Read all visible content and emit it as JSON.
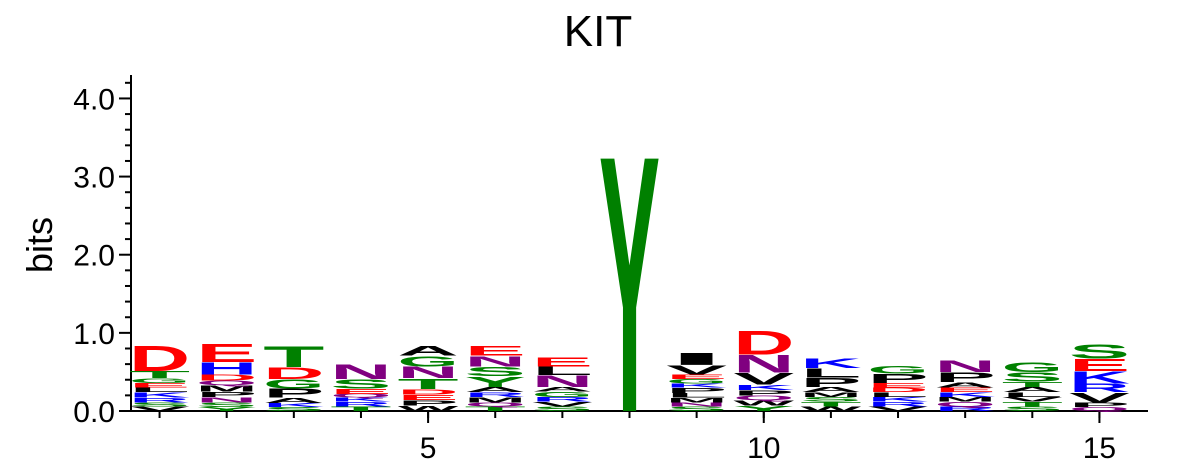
{
  "chart_data": {
    "type": "sequence-logo",
    "title": "KIT",
    "ylabel": "bits",
    "xlabel": "",
    "ylim": [
      0,
      4.3
    ],
    "y_ticks": [
      "0.0",
      "1.0",
      "2.0",
      "3.0",
      "4.0"
    ],
    "x_ticks": [
      "5",
      "10",
      "15"
    ],
    "x_tick_positions": [
      5,
      10,
      15
    ],
    "positions": [
      1,
      2,
      3,
      4,
      5,
      6,
      7,
      8,
      9,
      10,
      11,
      12,
      13,
      14,
      15
    ],
    "colors": {
      "acidic": "#ff0000",
      "basic": "#0000ff",
      "hydrophobic": "#000000",
      "polar": "#008000",
      "amide": "#800080"
    },
    "columns": [
      {
        "position": 1,
        "letters": [
          {
            "aa": "V",
            "bits": 0.06
          },
          {
            "aa": "S",
            "bits": 0.05
          },
          {
            "aa": "R",
            "bits": 0.06
          },
          {
            "aa": "K",
            "bits": 0.07
          },
          {
            "aa": "L",
            "bits": 0.06
          },
          {
            "aa": "E",
            "bits": 0.06
          },
          {
            "aa": "G",
            "bits": 0.06
          },
          {
            "aa": "T",
            "bits": 0.09
          },
          {
            "aa": "D",
            "bits": 0.33
          }
        ]
      },
      {
        "position": 2,
        "letters": [
          {
            "aa": "Y",
            "bits": 0.05
          },
          {
            "aa": "S",
            "bits": 0.06
          },
          {
            "aa": "N",
            "bits": 0.07
          },
          {
            "aa": "P",
            "bits": 0.07
          },
          {
            "aa": "M",
            "bits": 0.08
          },
          {
            "aa": "Q",
            "bits": 0.06
          },
          {
            "aa": "D",
            "bits": 0.08
          },
          {
            "aa": "H",
            "bits": 0.16
          },
          {
            "aa": "E",
            "bits": 0.24
          }
        ]
      },
      {
        "position": 3,
        "letters": [
          {
            "aa": "S",
            "bits": 0.05
          },
          {
            "aa": "K",
            "bits": 0.05
          },
          {
            "aa": "A",
            "bits": 0.07
          },
          {
            "aa": "P",
            "bits": 0.12
          },
          {
            "aa": "G",
            "bits": 0.12
          },
          {
            "aa": "D",
            "bits": 0.15
          },
          {
            "aa": "T",
            "bits": 0.27
          }
        ]
      },
      {
        "position": 4,
        "letters": [
          {
            "aa": "T",
            "bits": 0.06
          },
          {
            "aa": "R",
            "bits": 0.06
          },
          {
            "aa": "K",
            "bits": 0.05
          },
          {
            "aa": "Q",
            "bits": 0.05
          },
          {
            "aa": "E",
            "bits": 0.07
          },
          {
            "aa": "S",
            "bits": 0.12
          },
          {
            "aa": "N",
            "bits": 0.2
          }
        ]
      },
      {
        "position": 5,
        "letters": [
          {
            "aa": "W",
            "bits": 0.07
          },
          {
            "aa": "P",
            "bits": 0.07
          },
          {
            "aa": "E",
            "bits": 0.07
          },
          {
            "aa": "D",
            "bits": 0.07
          },
          {
            "aa": "T",
            "bits": 0.14
          },
          {
            "aa": "N",
            "bits": 0.15
          },
          {
            "aa": "G",
            "bits": 0.14
          },
          {
            "aa": "A",
            "bits": 0.13
          }
        ]
      },
      {
        "position": 6,
        "letters": [
          {
            "aa": "T",
            "bits": 0.06
          },
          {
            "aa": "Q",
            "bits": 0.05
          },
          {
            "aa": "M",
            "bits": 0.07
          },
          {
            "aa": "R",
            "bits": 0.06
          },
          {
            "aa": "A",
            "bits": 0.07
          },
          {
            "aa": "Y",
            "bits": 0.14
          },
          {
            "aa": "S",
            "bits": 0.12
          },
          {
            "aa": "N",
            "bits": 0.14
          },
          {
            "aa": "E",
            "bits": 0.13
          }
        ]
      },
      {
        "position": 7,
        "letters": [
          {
            "aa": "S",
            "bits": 0.06
          },
          {
            "aa": "V",
            "bits": 0.06
          },
          {
            "aa": "R",
            "bits": 0.06
          },
          {
            "aa": "G",
            "bits": 0.07
          },
          {
            "aa": "A",
            "bits": 0.06
          },
          {
            "aa": "N",
            "bits": 0.15
          },
          {
            "aa": "L",
            "bits": 0.11
          },
          {
            "aa": "E",
            "bits": 0.12
          }
        ]
      },
      {
        "position": 8,
        "letters": [
          {
            "aa": "Y",
            "bits": 3.38
          }
        ]
      },
      {
        "position": 9,
        "letters": [
          {
            "aa": "S",
            "bits": 0.06
          },
          {
            "aa": "N",
            "bits": 0.05
          },
          {
            "aa": "M",
            "bits": 0.06
          },
          {
            "aa": "L",
            "bits": 0.06
          },
          {
            "aa": "P",
            "bits": 0.07
          },
          {
            "aa": "K",
            "bits": 0.05
          },
          {
            "aa": "G",
            "bits": 0.06
          },
          {
            "aa": "E",
            "bits": 0.06
          },
          {
            "aa": "V",
            "bits": 0.12
          },
          {
            "aa": "I",
            "bits": 0.16
          }
        ]
      },
      {
        "position": 10,
        "letters": [
          {
            "aa": "Y",
            "bits": 0.07
          },
          {
            "aa": "W",
            "bits": 0.07
          },
          {
            "aa": "Q",
            "bits": 0.06
          },
          {
            "aa": "P",
            "bits": 0.07
          },
          {
            "aa": "K",
            "bits": 0.07
          },
          {
            "aa": "V",
            "bits": 0.15
          },
          {
            "aa": "N",
            "bits": 0.23
          },
          {
            "aa": "D",
            "bits": 0.32
          }
        ]
      },
      {
        "position": 11,
        "letters": [
          {
            "aa": "W",
            "bits": 0.06
          },
          {
            "aa": "T",
            "bits": 0.06
          },
          {
            "aa": "S",
            "bits": 0.06
          },
          {
            "aa": "M",
            "bits": 0.06
          },
          {
            "aa": "A",
            "bits": 0.07
          },
          {
            "aa": "P",
            "bits": 0.12
          },
          {
            "aa": "L",
            "bits": 0.12
          },
          {
            "aa": "K",
            "bits": 0.13
          }
        ]
      },
      {
        "position": 12,
        "letters": [
          {
            "aa": "V",
            "bits": 0.06
          },
          {
            "aa": "R",
            "bits": 0.06
          },
          {
            "aa": "K",
            "bits": 0.06
          },
          {
            "aa": "L",
            "bits": 0.06
          },
          {
            "aa": "D",
            "bits": 0.06
          },
          {
            "aa": "E",
            "bits": 0.06
          },
          {
            "aa": "P",
            "bits": 0.12
          },
          {
            "aa": "G",
            "bits": 0.1
          }
        ]
      },
      {
        "position": 13,
        "letters": [
          {
            "aa": "R",
            "bits": 0.06
          },
          {
            "aa": "Q",
            "bits": 0.06
          },
          {
            "aa": "M",
            "bits": 0.06
          },
          {
            "aa": "K",
            "bits": 0.06
          },
          {
            "aa": "E",
            "bits": 0.06
          },
          {
            "aa": "A",
            "bits": 0.07
          },
          {
            "aa": "P",
            "bits": 0.13
          },
          {
            "aa": "N",
            "bits": 0.15
          }
        ]
      },
      {
        "position": 14,
        "letters": [
          {
            "aa": "S",
            "bits": 0.06
          },
          {
            "aa": "T",
            "bits": 0.06
          },
          {
            "aa": "V",
            "bits": 0.06
          },
          {
            "aa": "L",
            "bits": 0.06
          },
          {
            "aa": "A",
            "bits": 0.07
          },
          {
            "aa": "T",
            "bits": 0.07
          },
          {
            "aa": "S",
            "bits": 0.12
          },
          {
            "aa": "G",
            "bits": 0.13
          }
        ]
      },
      {
        "position": 15,
        "letters": [
          {
            "aa": "Q",
            "bits": 0.05
          },
          {
            "aa": "P",
            "bits": 0.06
          },
          {
            "aa": "V",
            "bits": 0.13
          },
          {
            "aa": "R",
            "bits": 0.11
          },
          {
            "aa": "K",
            "bits": 0.16
          },
          {
            "aa": "E",
            "bits": 0.16
          },
          {
            "aa": "S",
            "bits": 0.19
          }
        ]
      }
    ]
  }
}
